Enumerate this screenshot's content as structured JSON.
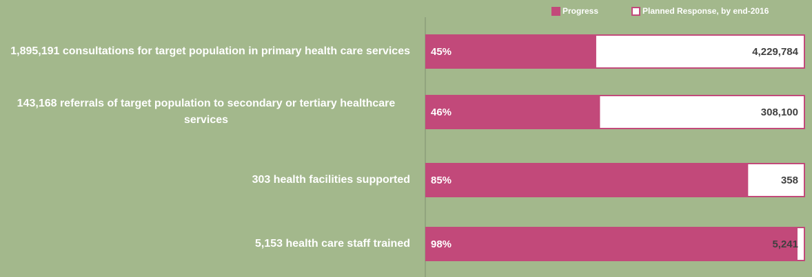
{
  "chart_data": {
    "type": "progress_bar",
    "categories": [
      "1,895,191 consultations for target population in primary health care services",
      "143,168 referrals of target population to secondary or tertiary healthcare services",
      "303 health facilities supported",
      "5,153 health care staff trained"
    ],
    "xlim": [
      0,
      100
    ],
    "series": [
      {
        "name": "Progress",
        "color": "#c2497a",
        "values": [
          45,
          46,
          85,
          98
        ],
        "value_labels": [
          "45%",
          "46%",
          "85%",
          "98%"
        ]
      },
      {
        "name": "Planned Response, by end-2016",
        "color": "#ffffff",
        "values": [
          4229784,
          308100,
          358,
          5241
        ],
        "value_labels": [
          "4,229,784",
          "308,100",
          "358",
          "5,241"
        ]
      }
    ]
  }
}
